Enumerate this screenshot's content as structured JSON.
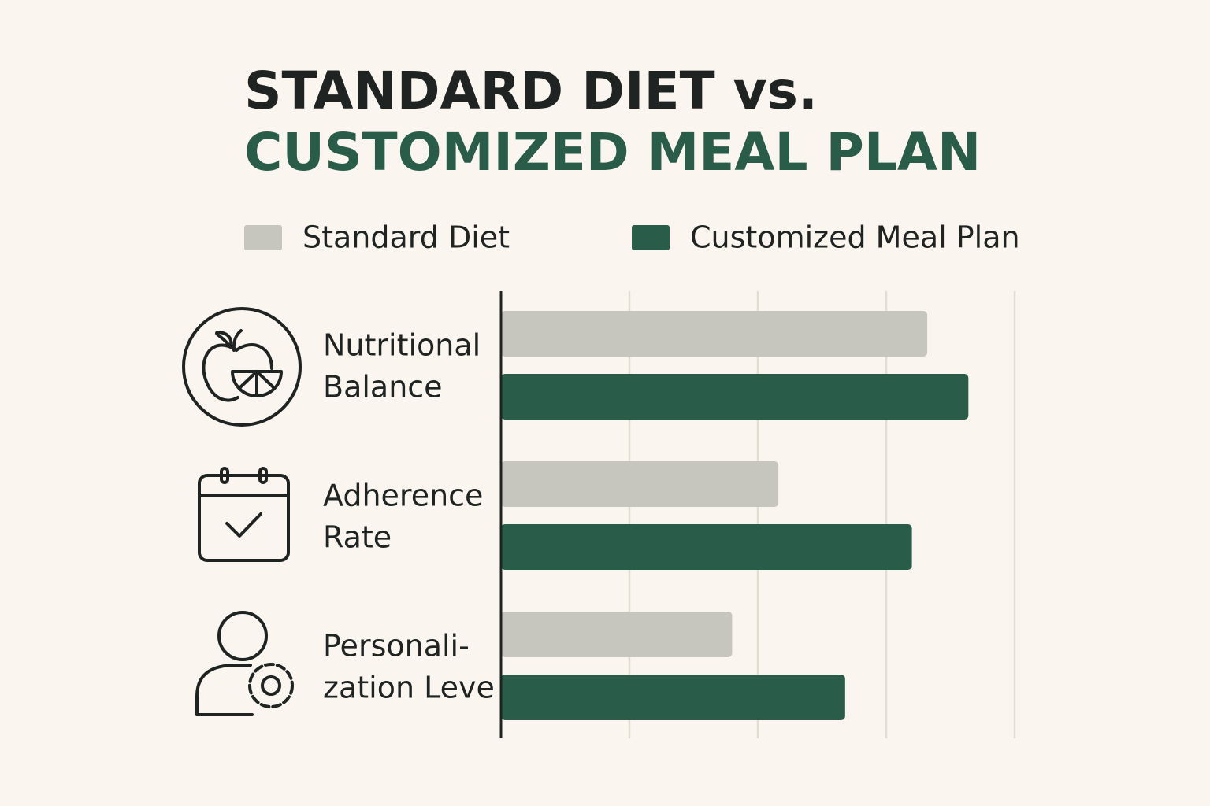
{
  "chart_data": {
    "type": "hbar",
    "title": [
      "STANDARD DIET vs.",
      "CUSTOMIZED MEAL PLAN"
    ],
    "categories": [
      [
        "Nutritional",
        "Balance"
      ],
      [
        "Adherence",
        "Rate"
      ],
      [
        "Personali-",
        "zation Leve"
      ]
    ],
    "series": [
      {
        "name": "Standard Diet",
        "color": "#c6c6bf",
        "values": [
          83,
          54,
          45
        ]
      },
      {
        "name": "Customized Meal Plan",
        "color": "#2a5c4a",
        "values": [
          91,
          80,
          67
        ]
      }
    ],
    "xlim": [
      0,
      100
    ],
    "xticks": [
      25,
      50,
      75,
      100
    ],
    "grid": true
  }
}
